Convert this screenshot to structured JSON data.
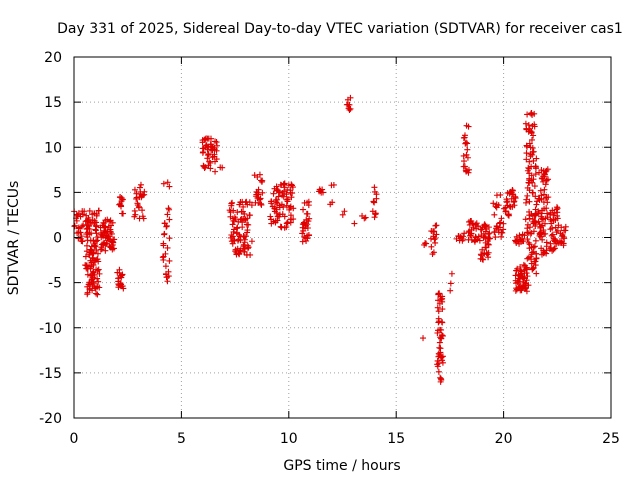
{
  "chart_data": {
    "type": "scatter",
    "title": "Day 331 of 2025, Sidereal Day-to-day VTEC variation (SDTVAR) for receiver cas1",
    "xlabel": "GPS time / hours",
    "ylabel": "SDTVAR / TECUs",
    "xlim": [
      0,
      25
    ],
    "ylim": [
      -20,
      20
    ],
    "xticks": [
      "0",
      "5",
      "10",
      "15",
      "20",
      "25"
    ],
    "yticks": [
      "20",
      "15",
      "10",
      "5",
      "0",
      "-5",
      "-10",
      "-15",
      "-20"
    ],
    "grid": true,
    "marker": "+",
    "colors": {
      "points": "#e00000"
    },
    "clusters": [
      [
        0.0,
        0.5,
        -0.5,
        3.0,
        25
      ],
      [
        0.5,
        1.2,
        -6.5,
        3.0,
        120
      ],
      [
        1.2,
        1.9,
        -1.5,
        2.0,
        60
      ],
      [
        2.0,
        2.3,
        -5.7,
        -3.5,
        20
      ],
      [
        2.1,
        2.3,
        2.5,
        4.5,
        12
      ],
      [
        2.8,
        3.3,
        2.0,
        6.0,
        25
      ],
      [
        4.1,
        4.5,
        -5.2,
        6.2,
        30
      ],
      [
        5.9,
        6.7,
        7.2,
        11.0,
        50
      ],
      [
        6.8,
        6.9,
        7.6,
        7.8,
        2
      ],
      [
        7.2,
        8.3,
        -2.0,
        4.0,
        90
      ],
      [
        8.4,
        8.8,
        3.5,
        7.0,
        20
      ],
      [
        9.1,
        10.3,
        1.0,
        6.0,
        80
      ],
      [
        10.6,
        11.0,
        -0.5,
        4.0,
        30
      ],
      [
        11.4,
        11.6,
        4.5,
        6.0,
        6
      ],
      [
        11.9,
        12.1,
        3.5,
        7.0,
        4
      ],
      [
        12.5,
        12.6,
        2.5,
        3.0,
        2
      ],
      [
        12.7,
        12.9,
        14.0,
        15.6,
        8
      ],
      [
        13.0,
        13.1,
        1.5,
        1.6,
        1
      ],
      [
        13.4,
        13.6,
        1.8,
        2.5,
        3
      ],
      [
        13.9,
        14.1,
        2.0,
        6.0,
        12
      ],
      [
        16.2,
        16.3,
        -11.2,
        -11.1,
        1
      ],
      [
        16.3,
        16.4,
        -1.0,
        -0.5,
        3
      ],
      [
        16.6,
        16.9,
        -2.0,
        1.5,
        15
      ],
      [
        16.9,
        17.2,
        -16.0,
        -6.0,
        50
      ],
      [
        17.5,
        17.6,
        -6.0,
        -3.0,
        3
      ],
      [
        17.8,
        18.2,
        -0.5,
        0.5,
        10
      ],
      [
        18.1,
        18.4,
        7.0,
        12.5,
        20
      ],
      [
        18.3,
        18.9,
        -0.5,
        2.0,
        30
      ],
      [
        18.9,
        19.4,
        -2.5,
        1.5,
        40
      ],
      [
        19.5,
        20.0,
        0.0,
        5.0,
        25
      ],
      [
        20.0,
        20.6,
        2.0,
        5.5,
        30
      ],
      [
        20.5,
        21.2,
        -6.0,
        -3.0,
        60
      ],
      [
        20.5,
        21.0,
        -1.0,
        0.5,
        15
      ],
      [
        21.0,
        21.6,
        -4.0,
        14.0,
        120
      ],
      [
        21.6,
        22.1,
        -2.0,
        8.0,
        70
      ],
      [
        22.1,
        22.6,
        -1.5,
        3.5,
        40
      ],
      [
        22.6,
        22.9,
        -1.0,
        2.0,
        15
      ]
    ]
  }
}
